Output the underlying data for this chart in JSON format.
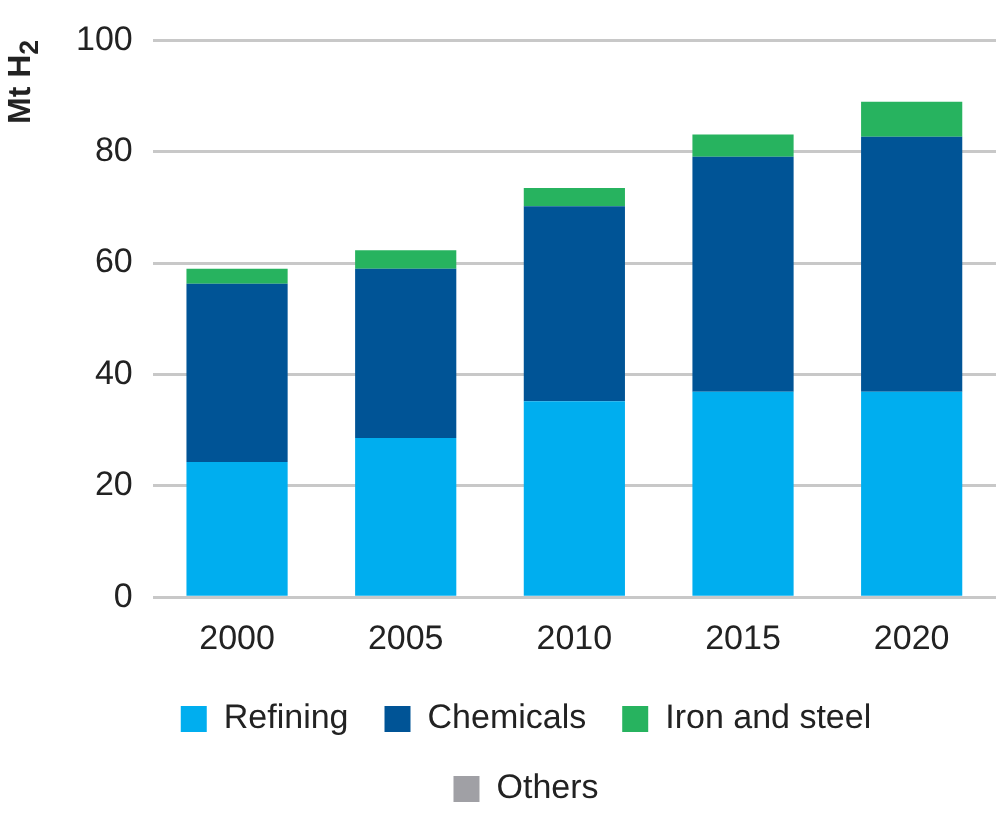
{
  "chart_data": {
    "type": "bar",
    "ylabel": "Mt H$_{2}$",
    "categories": [
      "2000",
      "2005",
      "2010",
      "2015",
      "2020"
    ],
    "stacked": true,
    "series": [
      {
        "name": "Refining",
        "color": "#00aeef",
        "values": [
          24.3,
          28.6,
          35.2,
          36.9,
          36.9
        ]
      },
      {
        "name": "Chemicals",
        "color": "#005496",
        "values": [
          32.0,
          30.4,
          35.0,
          42.2,
          45.8
        ]
      },
      {
        "name": "Iron and steel",
        "color": "#27b35f",
        "values": [
          2.7,
          3.3,
          3.3,
          4.0,
          6.3
        ]
      },
      {
        "name": "Others",
        "color": "#a0a0a5",
        "values": [
          0,
          0,
          0,
          0,
          0
        ]
      }
    ],
    "ylim": [
      0,
      100
    ],
    "yticks": [
      0,
      20,
      40,
      60,
      80,
      100
    ],
    "grid": "y",
    "legend": "bottom"
  }
}
